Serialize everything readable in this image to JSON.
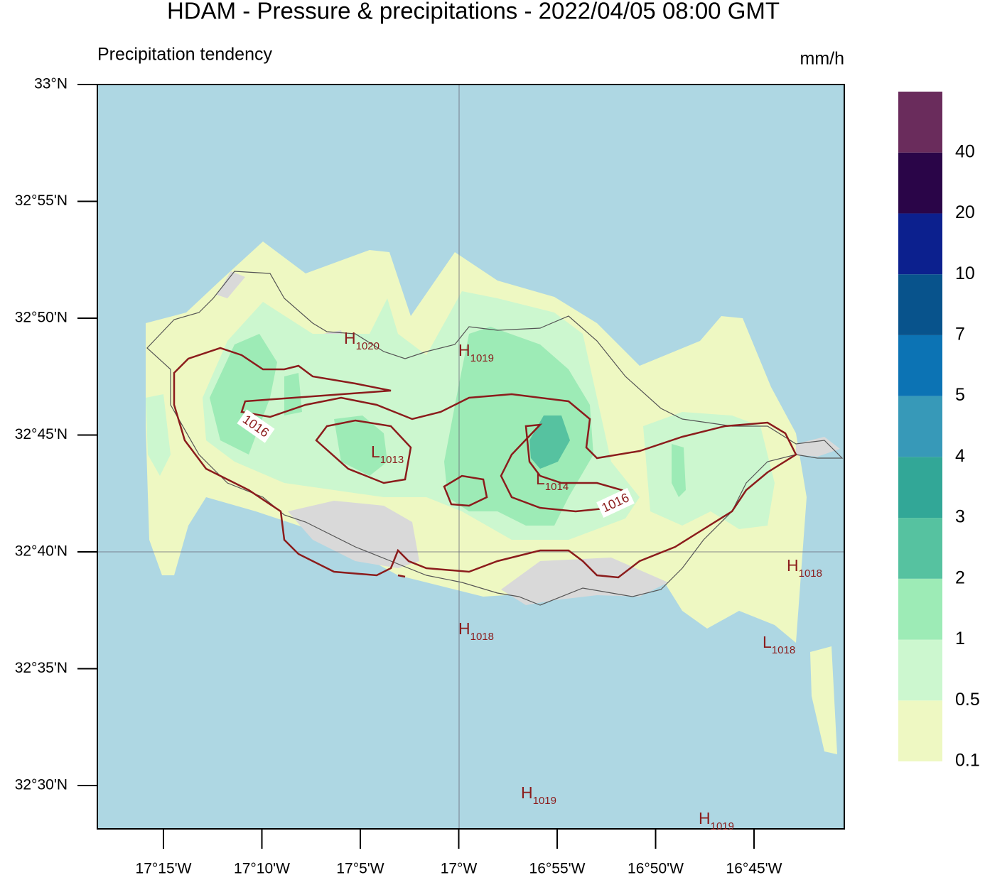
{
  "title": "HDAM - Pressure & precipitations  -  2022/04/05  08:00 GMT",
  "subtitle": "Precipitation tendency",
  "unit": "mm/h",
  "lat_ticks": [
    "33°N",
    "32°55'N",
    "32°50'N",
    "32°45'N",
    "32°40'N",
    "32°35'N",
    "32°30'N"
  ],
  "lon_ticks": [
    "17°15'W",
    "17°10'W",
    "17°5'W",
    "17°W",
    "16°55'W",
    "16°50'W",
    "16°45'W"
  ],
  "colorbar": {
    "labels": [
      0.1,
      0.5,
      1,
      2,
      3,
      4,
      5,
      7,
      10,
      20,
      40
    ],
    "colors": [
      "#eef8c2",
      "#ccf7cf",
      "#9debb6",
      "#56c2a0",
      "#32a797",
      "#3799b8",
      "#0c73b4",
      "#08538c",
      "#0c208e",
      "#2a0548",
      "#6a2c5c"
    ]
  },
  "pressure_centers": [
    {
      "letter": "H",
      "value": 1020
    },
    {
      "letter": "H",
      "value": 1019
    },
    {
      "letter": "L",
      "value": 1013
    },
    {
      "letter": "L",
      "value": 1014
    },
    {
      "letter": "H",
      "value": 1018
    },
    {
      "letter": "H",
      "value": 1018
    },
    {
      "letter": "L",
      "value": 1018
    },
    {
      "letter": "H",
      "value": 1019
    },
    {
      "letter": "H",
      "value": 1019
    }
  ],
  "contour_labels": [
    1016,
    1016
  ]
}
